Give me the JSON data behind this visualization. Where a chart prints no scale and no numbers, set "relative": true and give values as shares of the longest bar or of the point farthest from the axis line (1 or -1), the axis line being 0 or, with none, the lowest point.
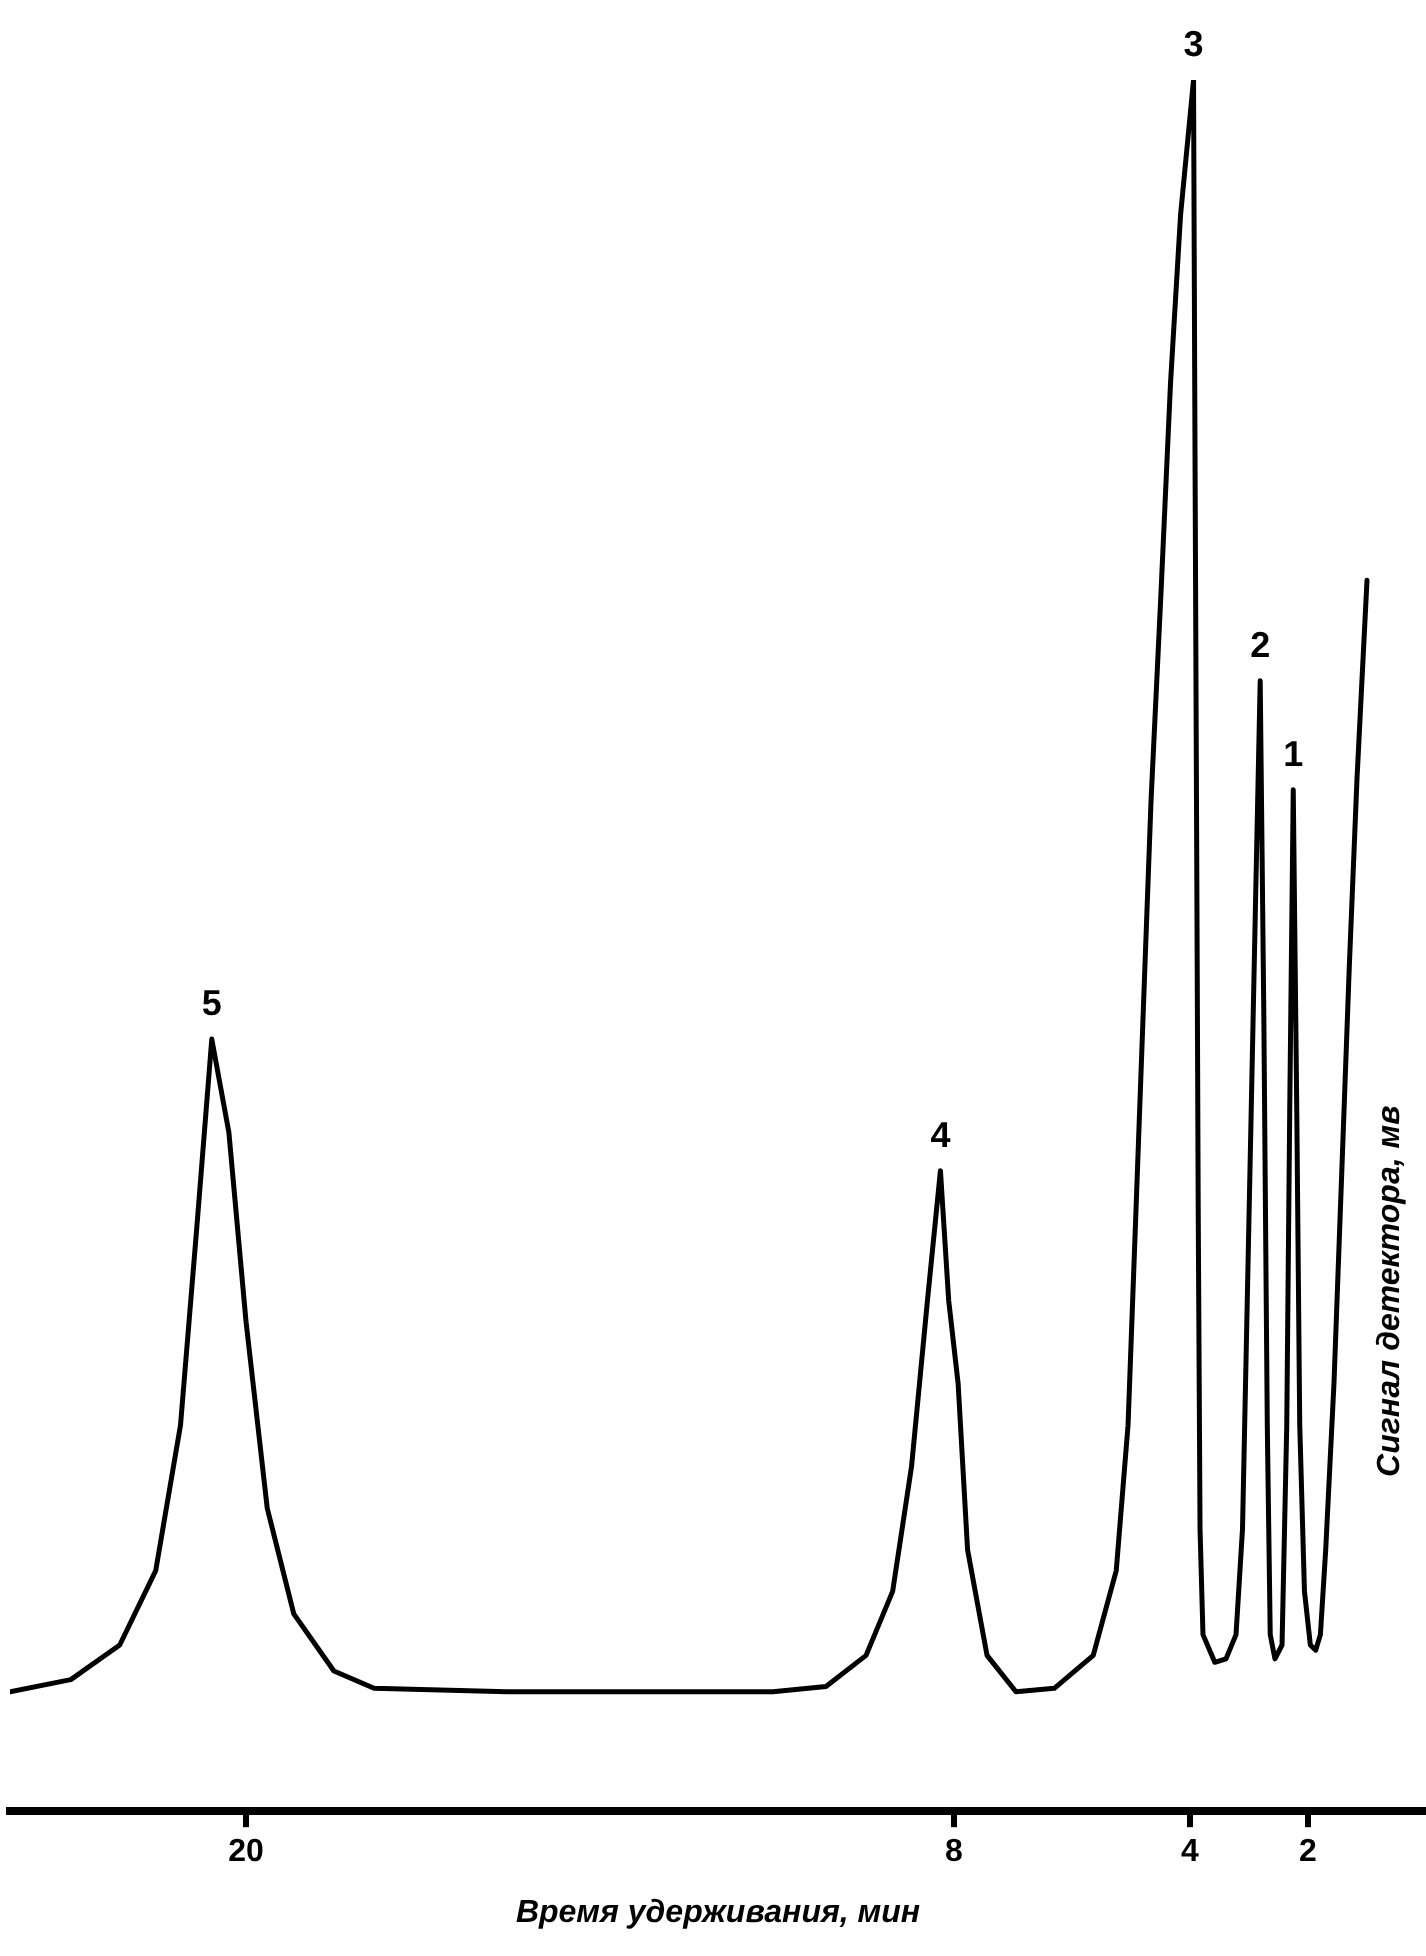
{
  "chart_data": {
    "type": "line",
    "relative": true,
    "color": "#000000",
    "xlabel": "Время удерживания, мин",
    "ylabel": "Сигнал детектора, мв",
    "xlim": [
      24,
      0
    ],
    "xticks": [
      20,
      8,
      4,
      2
    ],
    "x": [
      24,
      22.97,
      22.14,
      21.53,
      21.11,
      20.82,
      20.58,
      20.29,
      20,
      19.64,
      19.19,
      18.51,
      17.83,
      15.58,
      11.07,
      10.17,
      9.49,
      9.04,
      8.72,
      8.45,
      8.23,
      8.09,
      7.93,
      7.77,
      7.44,
      6.95,
      6.3,
      5.64,
      5.25,
      5.05,
      4.92,
      4.79,
      4.66,
      4.49,
      4.33,
      4.16,
      3.94,
      3.92,
      3.89,
      3.86,
      3.83,
      3.78,
      3.58,
      3.39,
      3.22,
      3.11,
      3.0,
      2.89,
      2.81,
      2.75,
      2.69,
      2.64,
      2.56,
      2.44,
      2.36,
      2.31,
      2.25,
      2.19,
      2.14,
      2.06,
      1.96,
      1.87,
      1.79,
      1.7,
      1.56,
      1.43,
      1.3,
      1.17,
      1.0
    ],
    "values": [
      0.069,
      0.076,
      0.096,
      0.139,
      0.223,
      0.343,
      0.446,
      0.392,
      0.283,
      0.175,
      0.114,
      0.081,
      0.071,
      0.069,
      0.069,
      0.072,
      0.09,
      0.127,
      0.199,
      0.295,
      0.37,
      0.295,
      0.247,
      0.151,
      0.09,
      0.069,
      0.071,
      0.09,
      0.139,
      0.223,
      0.343,
      0.464,
      0.584,
      0.705,
      0.825,
      0.922,
      1,
      0.825,
      0.584,
      0.343,
      0.163,
      0.102,
      0.086,
      0.088,
      0.102,
      0.163,
      0.343,
      0.524,
      0.653,
      0.464,
      0.223,
      0.102,
      0.088,
      0.096,
      0.223,
      0.404,
      0.59,
      0.404,
      0.223,
      0.127,
      0.096,
      0.093,
      0.102,
      0.151,
      0.247,
      0.367,
      0.488,
      0.596,
      0.711
    ],
    "annotations": [
      {
        "text": "5",
        "x": 20.58,
        "y": 0.446
      },
      {
        "text": "4",
        "x": 8.23,
        "y": 0.37
      },
      {
        "text": "3",
        "x": 3.94,
        "y": 1
      },
      {
        "text": "2",
        "x": 2.81,
        "y": 0.653
      },
      {
        "text": "1",
        "x": 2.25,
        "y": 0.59
      }
    ]
  }
}
